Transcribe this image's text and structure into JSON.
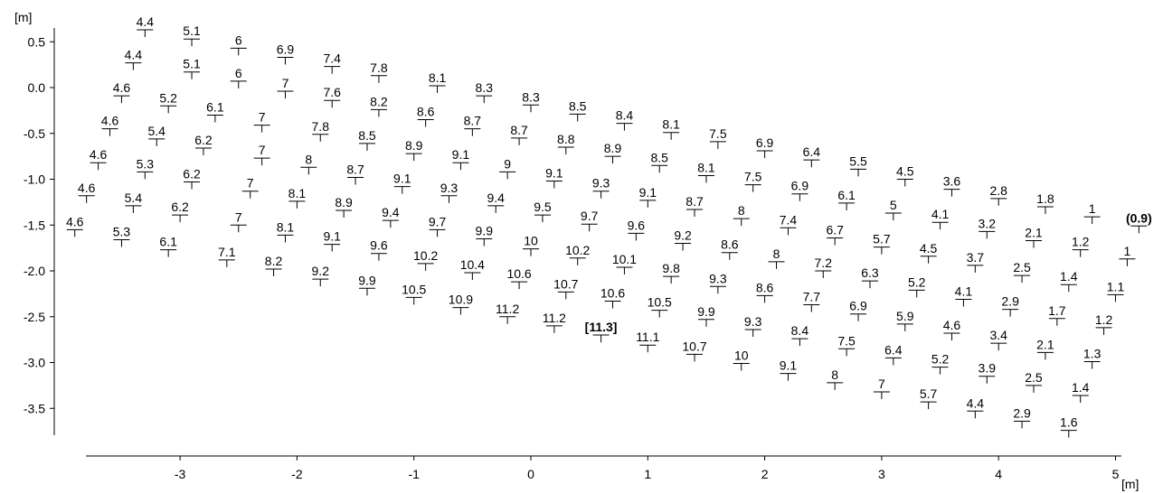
{
  "chart_data": {
    "type": "scatter",
    "xlabel": "[m]",
    "ylabel": "[m]",
    "xlim": [
      -3.8,
      5.3
    ],
    "ylim": [
      -3.85,
      0.7
    ],
    "xticks": [
      "-3",
      "-2",
      "-1",
      "0",
      "1",
      "2",
      "3",
      "4",
      "5"
    ],
    "yticks": [
      "0.5",
      "0.0",
      "-0.5",
      "-1.0",
      "-1.5",
      "-2.0",
      "-2.5",
      "-3.0",
      "-3.5"
    ],
    "grid": false,
    "points": [
      {
        "x": -3.3,
        "y": 0.63,
        "label": "4.4"
      },
      {
        "x": -2.9,
        "y": 0.53,
        "label": "5.1"
      },
      {
        "x": -2.5,
        "y": 0.43,
        "label": "6"
      },
      {
        "x": -2.1,
        "y": 0.33,
        "label": "6.9"
      },
      {
        "x": -1.7,
        "y": 0.23,
        "label": "7.4"
      },
      {
        "x": -1.3,
        "y": 0.13,
        "label": "7.8"
      },
      {
        "x": -0.8,
        "y": 0.02,
        "label": "8.1"
      },
      {
        "x": -0.4,
        "y": -0.09,
        "label": "8.3"
      },
      {
        "x": 0.0,
        "y": -0.19,
        "label": "8.3"
      },
      {
        "x": 0.4,
        "y": -0.29,
        "label": "8.5"
      },
      {
        "x": 0.8,
        "y": -0.39,
        "label": "8.4"
      },
      {
        "x": 1.2,
        "y": -0.49,
        "label": "8.1"
      },
      {
        "x": 1.6,
        "y": -0.59,
        "label": "7.5"
      },
      {
        "x": 2.0,
        "y": -0.69,
        "label": "6.9"
      },
      {
        "x": 2.4,
        "y": -0.79,
        "label": "6.4"
      },
      {
        "x": 2.8,
        "y": -0.89,
        "label": "5.5"
      },
      {
        "x": 3.2,
        "y": -1.0,
        "label": "4.5"
      },
      {
        "x": 3.6,
        "y": -1.11,
        "label": "3.6"
      },
      {
        "x": 4.0,
        "y": -1.21,
        "label": "2.8"
      },
      {
        "x": 4.4,
        "y": -1.3,
        "label": "1.8"
      },
      {
        "x": 4.8,
        "y": -1.41,
        "label": "1"
      },
      {
        "x": 5.2,
        "y": -1.51,
        "label": "(0.9)",
        "bold": true
      },
      {
        "x": -3.4,
        "y": 0.27,
        "label": "4.4"
      },
      {
        "x": -2.9,
        "y": 0.17,
        "label": "5.1"
      },
      {
        "x": -2.5,
        "y": 0.07,
        "label": "6"
      },
      {
        "x": -2.1,
        "y": -0.04,
        "label": "7"
      },
      {
        "x": -1.7,
        "y": -0.14,
        "label": "7.6"
      },
      {
        "x": -1.3,
        "y": -0.24,
        "label": "8.2"
      },
      {
        "x": -0.9,
        "y": -0.35,
        "label": "8.6"
      },
      {
        "x": -0.5,
        "y": -0.45,
        "label": "8.7"
      },
      {
        "x": -0.1,
        "y": -0.55,
        "label": "8.7"
      },
      {
        "x": 0.3,
        "y": -0.65,
        "label": "8.8"
      },
      {
        "x": 0.7,
        "y": -0.75,
        "label": "8.9"
      },
      {
        "x": 1.1,
        "y": -0.85,
        "label": "8.5"
      },
      {
        "x": 1.5,
        "y": -0.96,
        "label": "8.1"
      },
      {
        "x": 1.9,
        "y": -1.06,
        "label": "7.5"
      },
      {
        "x": 2.3,
        "y": -1.16,
        "label": "6.9"
      },
      {
        "x": 2.7,
        "y": -1.26,
        "label": "6.1"
      },
      {
        "x": 3.1,
        "y": -1.37,
        "label": "5"
      },
      {
        "x": 3.5,
        "y": -1.47,
        "label": "4.1"
      },
      {
        "x": 3.9,
        "y": -1.57,
        "label": "3.2"
      },
      {
        "x": 4.3,
        "y": -1.67,
        "label": "2.1"
      },
      {
        "x": 4.7,
        "y": -1.77,
        "label": "1.2"
      },
      {
        "x": 5.1,
        "y": -1.87,
        "label": "1"
      },
      {
        "x": -3.5,
        "y": -0.09,
        "label": "4.6"
      },
      {
        "x": -3.1,
        "y": -0.2,
        "label": "5.2"
      },
      {
        "x": -2.7,
        "y": -0.3,
        "label": "6.1"
      },
      {
        "x": -2.3,
        "y": -0.41,
        "label": "7"
      },
      {
        "x": -1.8,
        "y": -0.51,
        "label": "7.8"
      },
      {
        "x": -1.4,
        "y": -0.61,
        "label": "8.5"
      },
      {
        "x": -1.0,
        "y": -0.72,
        "label": "8.9"
      },
      {
        "x": -0.6,
        "y": -0.82,
        "label": "9.1"
      },
      {
        "x": -0.2,
        "y": -0.92,
        "label": "9"
      },
      {
        "x": 0.2,
        "y": -1.02,
        "label": "9.1"
      },
      {
        "x": 0.6,
        "y": -1.13,
        "label": "9.3"
      },
      {
        "x": 1.0,
        "y": -1.23,
        "label": "9.1"
      },
      {
        "x": 1.4,
        "y": -1.33,
        "label": "8.7"
      },
      {
        "x": 1.8,
        "y": -1.43,
        "label": "8"
      },
      {
        "x": 2.2,
        "y": -1.53,
        "label": "7.4"
      },
      {
        "x": 2.6,
        "y": -1.64,
        "label": "6.7"
      },
      {
        "x": 3.0,
        "y": -1.74,
        "label": "5.7"
      },
      {
        "x": 3.4,
        "y": -1.84,
        "label": "4.5"
      },
      {
        "x": 3.8,
        "y": -1.94,
        "label": "3.7"
      },
      {
        "x": 4.2,
        "y": -2.05,
        "label": "2.5"
      },
      {
        "x": 4.6,
        "y": -2.15,
        "label": "1.4"
      },
      {
        "x": 5.0,
        "y": -2.26,
        "label": "1.1"
      },
      {
        "x": -3.6,
        "y": -0.45,
        "label": "4.6"
      },
      {
        "x": -3.2,
        "y": -0.56,
        "label": "5.4"
      },
      {
        "x": -2.8,
        "y": -0.66,
        "label": "6.2"
      },
      {
        "x": -2.3,
        "y": -0.77,
        "label": "7"
      },
      {
        "x": -1.9,
        "y": -0.87,
        "label": "8"
      },
      {
        "x": -1.5,
        "y": -0.98,
        "label": "8.7"
      },
      {
        "x": -1.1,
        "y": -1.08,
        "label": "9.1"
      },
      {
        "x": -0.7,
        "y": -1.18,
        "label": "9.3"
      },
      {
        "x": -0.3,
        "y": -1.29,
        "label": "9.4"
      },
      {
        "x": 0.1,
        "y": -1.39,
        "label": "9.5"
      },
      {
        "x": 0.5,
        "y": -1.49,
        "label": "9.7"
      },
      {
        "x": 0.9,
        "y": -1.59,
        "label": "9.6"
      },
      {
        "x": 1.3,
        "y": -1.7,
        "label": "9.2"
      },
      {
        "x": 1.7,
        "y": -1.8,
        "label": "8.6"
      },
      {
        "x": 2.1,
        "y": -1.9,
        "label": "8"
      },
      {
        "x": 2.5,
        "y": -2.0,
        "label": "7.2"
      },
      {
        "x": 2.9,
        "y": -2.11,
        "label": "6.3"
      },
      {
        "x": 3.3,
        "y": -2.21,
        "label": "5.2"
      },
      {
        "x": 3.7,
        "y": -2.31,
        "label": "4.1"
      },
      {
        "x": 4.1,
        "y": -2.42,
        "label": "2.9"
      },
      {
        "x": 4.5,
        "y": -2.52,
        "label": "1.7"
      },
      {
        "x": 4.9,
        "y": -2.62,
        "label": "1.2"
      },
      {
        "x": -3.7,
        "y": -0.82,
        "label": "4.6"
      },
      {
        "x": -3.3,
        "y": -0.92,
        "label": "5.3"
      },
      {
        "x": -2.9,
        "y": -1.03,
        "label": "6.2"
      },
      {
        "x": -2.4,
        "y": -1.13,
        "label": "7"
      },
      {
        "x": -2.0,
        "y": -1.24,
        "label": "8.1"
      },
      {
        "x": -1.6,
        "y": -1.34,
        "label": "8.9"
      },
      {
        "x": -1.2,
        "y": -1.45,
        "label": "9.4"
      },
      {
        "x": -0.8,
        "y": -1.55,
        "label": "9.7"
      },
      {
        "x": -0.4,
        "y": -1.65,
        "label": "9.9"
      },
      {
        "x": 0.0,
        "y": -1.76,
        "label": "10"
      },
      {
        "x": 0.4,
        "y": -1.86,
        "label": "10.2"
      },
      {
        "x": 0.8,
        "y": -1.96,
        "label": "10.1"
      },
      {
        "x": 1.2,
        "y": -2.06,
        "label": "9.8"
      },
      {
        "x": 1.6,
        "y": -2.17,
        "label": "9.3"
      },
      {
        "x": 2.0,
        "y": -2.27,
        "label": "8.6"
      },
      {
        "x": 2.4,
        "y": -2.37,
        "label": "7.7"
      },
      {
        "x": 2.8,
        "y": -2.47,
        "label": "6.9"
      },
      {
        "x": 3.2,
        "y": -2.58,
        "label": "5.9"
      },
      {
        "x": 3.6,
        "y": -2.68,
        "label": "4.6"
      },
      {
        "x": 4.0,
        "y": -2.79,
        "label": "3.4"
      },
      {
        "x": 4.4,
        "y": -2.89,
        "label": "2.1"
      },
      {
        "x": 4.8,
        "y": -2.99,
        "label": "1.3"
      },
      {
        "x": -3.8,
        "y": -1.18,
        "label": "4.6"
      },
      {
        "x": -3.4,
        "y": -1.29,
        "label": "5.4"
      },
      {
        "x": -3.0,
        "y": -1.39,
        "label": "6.2"
      },
      {
        "x": -2.5,
        "y": -1.5,
        "label": "7"
      },
      {
        "x": -2.1,
        "y": -1.61,
        "label": "8.1"
      },
      {
        "x": -1.7,
        "y": -1.71,
        "label": "9.1"
      },
      {
        "x": -1.3,
        "y": -1.81,
        "label": "9.6"
      },
      {
        "x": -0.9,
        "y": -1.92,
        "label": "10.2"
      },
      {
        "x": -0.5,
        "y": -2.02,
        "label": "10.4"
      },
      {
        "x": -0.1,
        "y": -2.12,
        "label": "10.6"
      },
      {
        "x": 0.3,
        "y": -2.23,
        "label": "10.7"
      },
      {
        "x": 0.7,
        "y": -2.33,
        "label": "10.6"
      },
      {
        "x": 1.1,
        "y": -2.43,
        "label": "10.5"
      },
      {
        "x": 1.5,
        "y": -2.53,
        "label": "9.9"
      },
      {
        "x": 1.9,
        "y": -2.64,
        "label": "9.3"
      },
      {
        "x": 2.3,
        "y": -2.74,
        "label": "8.4"
      },
      {
        "x": 2.7,
        "y": -2.85,
        "label": "7.5"
      },
      {
        "x": 3.1,
        "y": -2.95,
        "label": "6.4"
      },
      {
        "x": 3.5,
        "y": -3.05,
        "label": "5.2"
      },
      {
        "x": 3.9,
        "y": -3.15,
        "label": "3.9"
      },
      {
        "x": 4.3,
        "y": -3.25,
        "label": "2.5"
      },
      {
        "x": 4.7,
        "y": -3.36,
        "label": "1.4"
      },
      {
        "x": -3.9,
        "y": -1.55,
        "label": "4.6"
      },
      {
        "x": -3.5,
        "y": -1.66,
        "label": "5.3"
      },
      {
        "x": -3.1,
        "y": -1.77,
        "label": "6.1"
      },
      {
        "x": -2.6,
        "y": -1.88,
        "label": "7.1"
      },
      {
        "x": -2.2,
        "y": -1.98,
        "label": "8.2"
      },
      {
        "x": -1.8,
        "y": -2.09,
        "label": "9.2"
      },
      {
        "x": -1.4,
        "y": -2.19,
        "label": "9.9"
      },
      {
        "x": -1.0,
        "y": -2.29,
        "label": "10.5"
      },
      {
        "x": -0.6,
        "y": -2.4,
        "label": "10.9"
      },
      {
        "x": -0.2,
        "y": -2.5,
        "label": "11.2"
      },
      {
        "x": 0.2,
        "y": -2.6,
        "label": "11.2"
      },
      {
        "x": 0.6,
        "y": -2.7,
        "label": "[11.3]",
        "bold": true
      },
      {
        "x": 1.0,
        "y": -2.81,
        "label": "11.1"
      },
      {
        "x": 1.4,
        "y": -2.91,
        "label": "10.7"
      },
      {
        "x": 1.8,
        "y": -3.01,
        "label": "10"
      },
      {
        "x": 2.2,
        "y": -3.12,
        "label": "9.1"
      },
      {
        "x": 2.6,
        "y": -3.22,
        "label": "8"
      },
      {
        "x": 3.0,
        "y": -3.32,
        "label": "7"
      },
      {
        "x": 3.4,
        "y": -3.43,
        "label": "5.7"
      },
      {
        "x": 3.8,
        "y": -3.53,
        "label": "4.4"
      },
      {
        "x": 4.2,
        "y": -3.64,
        "label": "2.9"
      },
      {
        "x": 4.6,
        "y": -3.74,
        "label": "1.6"
      }
    ]
  }
}
